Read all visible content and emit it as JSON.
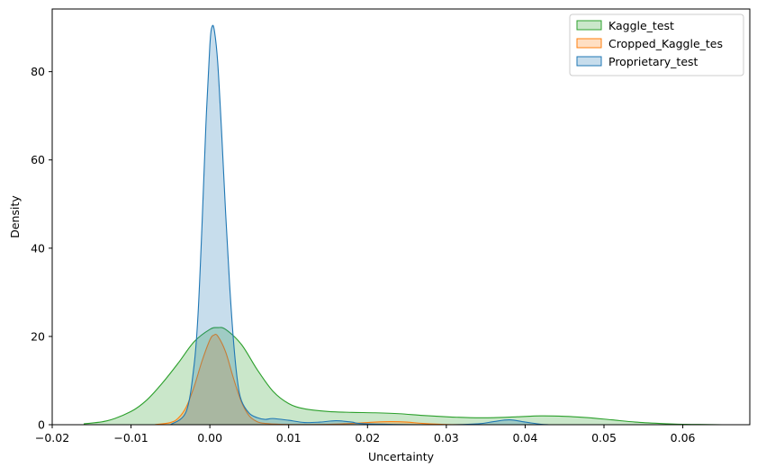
{
  "chart_data": {
    "type": "area",
    "title": "",
    "xlabel": "Uncertainty",
    "ylabel": "Density",
    "xlim": [
      -0.02,
      0.0685
    ],
    "ylim": [
      0,
      94.2
    ],
    "xticks": [
      -0.02,
      -0.01,
      0.0,
      0.01,
      0.02,
      0.03,
      0.04,
      0.05,
      0.06
    ],
    "xtick_labels": [
      "−0.02",
      "−0.01",
      "0.00",
      "0.01",
      "0.02",
      "0.03",
      "0.04",
      "0.05",
      "0.06"
    ],
    "yticks": [
      0,
      20,
      40,
      60,
      80
    ],
    "ytick_labels": [
      "0",
      "20",
      "40",
      "60",
      "80"
    ],
    "grid": false,
    "legend_position": "top-right",
    "series": [
      {
        "name": "Kaggle_test",
        "color": "#2ca02c",
        "x": [
          -0.016,
          -0.013,
          -0.01,
          -0.008,
          -0.006,
          -0.004,
          -0.002,
          0.0,
          0.001,
          0.002,
          0.004,
          0.006,
          0.008,
          0.01,
          0.012,
          0.015,
          0.018,
          0.021,
          0.024,
          0.027,
          0.03,
          0.033,
          0.036,
          0.039,
          0.042,
          0.045,
          0.048,
          0.051,
          0.054,
          0.057,
          0.06,
          0.063,
          0.065
        ],
        "y": [
          0.2,
          0.9,
          3.0,
          5.6,
          9.5,
          14.0,
          18.8,
          21.6,
          22.0,
          21.6,
          18.2,
          12.5,
          7.6,
          4.8,
          3.6,
          3.0,
          2.8,
          2.7,
          2.5,
          2.1,
          1.8,
          1.6,
          1.6,
          1.8,
          2.0,
          1.9,
          1.6,
          1.1,
          0.6,
          0.3,
          0.1,
          0.05,
          0.0
        ]
      },
      {
        "name": "Cropped_Kaggle_tes",
        "color": "#ff7f0e",
        "x": [
          -0.007,
          -0.005,
          -0.004,
          -0.003,
          -0.002,
          -0.001,
          0.0,
          0.0005,
          0.001,
          0.002,
          0.003,
          0.004,
          0.005,
          0.006,
          0.007,
          0.009,
          0.012,
          0.015,
          0.018,
          0.021,
          0.023,
          0.025,
          0.027,
          0.03,
          0.034
        ],
        "y": [
          0.0,
          0.5,
          1.5,
          4.0,
          8.6,
          14.4,
          19.2,
          20.3,
          20.1,
          16.5,
          10.5,
          5.2,
          2.0,
          0.7,
          0.3,
          0.1,
          0.05,
          0.1,
          0.3,
          0.6,
          0.7,
          0.6,
          0.3,
          0.05,
          0.0
        ]
      },
      {
        "name": "Proprietary_test",
        "color": "#1f77b4",
        "x": [
          -0.005,
          -0.003,
          -0.002,
          -0.0015,
          -0.001,
          -0.0005,
          0.0,
          0.0003,
          0.0006,
          0.001,
          0.0015,
          0.002,
          0.0025,
          0.003,
          0.0035,
          0.004,
          0.005,
          0.006,
          0.007,
          0.008,
          0.01,
          0.012,
          0.014,
          0.016,
          0.018,
          0.02,
          0.03,
          0.034,
          0.036,
          0.038,
          0.04,
          0.042,
          0.043
        ],
        "y": [
          0.0,
          3.0,
          13.5,
          25.0,
          45.0,
          68.0,
          86.0,
          90.3,
          89.0,
          82.0,
          66.0,
          48.0,
          32.0,
          19.0,
          10.0,
          5.5,
          2.6,
          1.6,
          1.2,
          1.4,
          1.0,
          0.5,
          0.6,
          0.9,
          0.6,
          0.2,
          0.0,
          0.2,
          0.7,
          1.1,
          0.6,
          0.1,
          0.0
        ]
      }
    ]
  }
}
